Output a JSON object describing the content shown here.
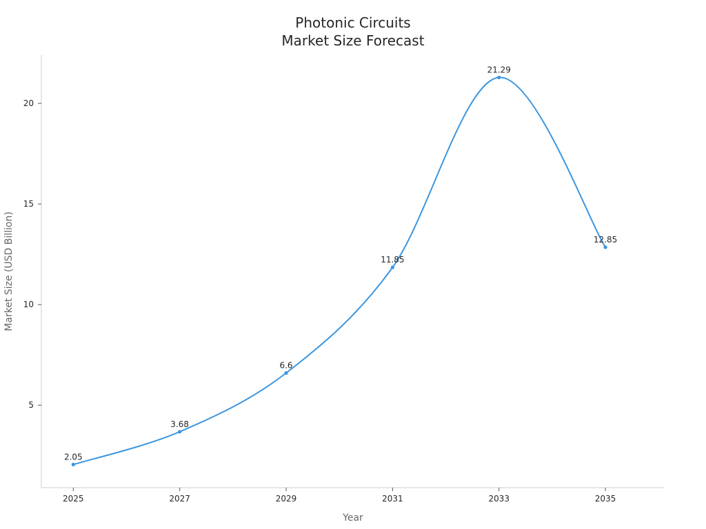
{
  "chart_data": {
    "type": "line",
    "title_lines": [
      "Photonic Circuits",
      "Market Size Forecast"
    ],
    "xlabel": "Year",
    "ylabel": "Market Size (USD Billion)",
    "x": [
      2025,
      2027,
      2029,
      2031,
      2033,
      2035
    ],
    "x_tick_labels": [
      "2025",
      "2027",
      "2029",
      "2031",
      "2033",
      "2035"
    ],
    "y_ticks": [
      5,
      10,
      15,
      20
    ],
    "y_tick_labels": [
      "5",
      "10",
      "15",
      "20"
    ],
    "xlim": [
      2024.4,
      2036.1
    ],
    "ylim": [
      0.9,
      22.4
    ],
    "series": [
      {
        "name": "Market Size",
        "values": [
          2.05,
          3.68,
          6.6,
          11.85,
          21.29,
          12.85
        ],
        "labels": [
          "2.05",
          "3.68",
          "6.6",
          "11.85",
          "21.29",
          "12.85"
        ],
        "color": "#3a95e0"
      }
    ],
    "grid": false,
    "legend": false
  }
}
